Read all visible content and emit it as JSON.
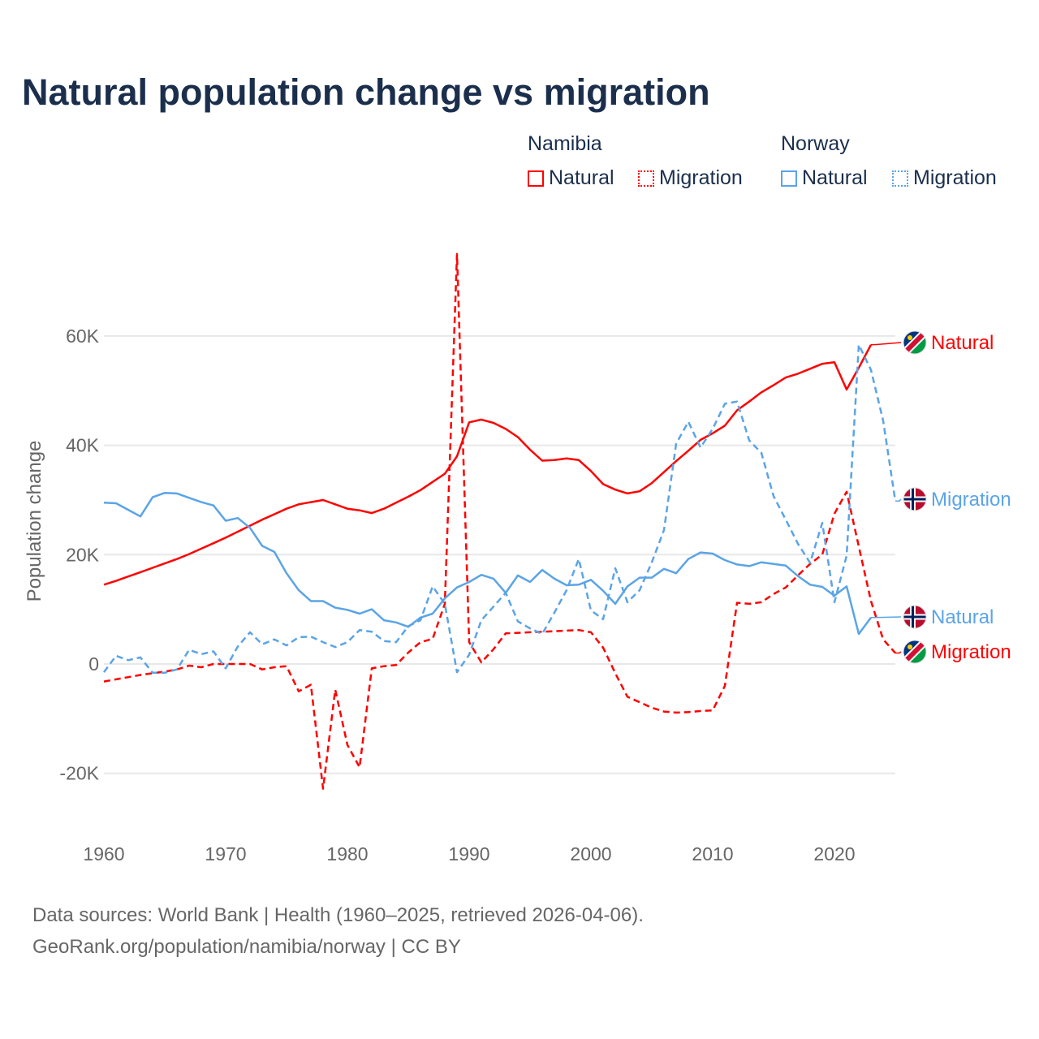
{
  "title": "Natural population change vs migration",
  "legend": {
    "groups": [
      {
        "name": "Namibia",
        "items": [
          {
            "label": "Natural",
            "style": "solid"
          },
          {
            "label": "Migration",
            "style": "dotted"
          }
        ],
        "color": "#ff0000"
      },
      {
        "name": "Norway",
        "items": [
          {
            "label": "Natural",
            "style": "solid"
          },
          {
            "label": "Migration",
            "style": "dotted"
          }
        ],
        "color": "#5ba4e6"
      }
    ]
  },
  "footer": {
    "line1": "Data sources: World Bank | Health (1960–2025, retrieved 2026-04-06).",
    "line2": "GeoRank.org/population/namibia/norway | CC BY"
  },
  "chart_data": {
    "type": "line",
    "title": "Natural population change vs migration",
    "xlabel": "",
    "ylabel": "Population change",
    "xlim": [
      1960,
      2025
    ],
    "ylim": [
      -30000,
      75000
    ],
    "xticks": [
      1960,
      1970,
      1980,
      1990,
      2000,
      2010,
      2020
    ],
    "xtick_labels": [
      "1960",
      "1970",
      "1980",
      "1990",
      "2000",
      "2010",
      "2020"
    ],
    "yticks": [
      -20000,
      0,
      20000,
      40000,
      60000
    ],
    "ytick_labels": [
      "-20K",
      "0",
      "20K",
      "40K",
      "60K"
    ],
    "grid": true,
    "series": [
      {
        "name": "Natural",
        "country": "Namibia",
        "color": "#ff0000",
        "dash": false,
        "end_label": "Natural",
        "flag": "namibia-flag",
        "start": 1960,
        "values": [
          14500,
          15200,
          16000,
          16800,
          17600,
          18400,
          19200,
          20100,
          21100,
          22100,
          23100,
          24200,
          25300,
          26400,
          27400,
          28400,
          29200,
          29600,
          30000,
          29200,
          28400,
          28100,
          27600,
          28400,
          29500,
          30600,
          31800,
          33300,
          34800,
          38000,
          44200,
          44700,
          44100,
          43000,
          41500,
          39200,
          37200,
          37300,
          37600,
          37300,
          35300,
          32900,
          31900,
          31200,
          31600,
          33100,
          35100,
          37100,
          39000,
          41000,
          42200,
          43600,
          46400,
          48000,
          49700,
          51000,
          52400,
          53100,
          54000,
          54900,
          55200,
          50200,
          54200,
          58400
        ]
      },
      {
        "name": "Migration",
        "country": "Namibia",
        "color": "#ff0000",
        "dash": true,
        "end_label": "Migration",
        "flag": "namibia-flag",
        "start": 1960,
        "values": [
          -3200,
          -2800,
          -2400,
          -2000,
          -1700,
          -1400,
          -1000,
          -300,
          -600,
          0,
          0,
          0,
          0,
          -1000,
          -600,
          -400,
          -5000,
          -3800,
          -22800,
          -4700,
          -14800,
          -18900,
          -800,
          -400,
          -200,
          2100,
          4000,
          4600,
          11000,
          75000,
          4000,
          300,
          2700,
          5600,
          5700,
          5800,
          5900,
          6000,
          6100,
          6200,
          5800,
          3000,
          -1700,
          -6000,
          -7000,
          -8000,
          -8700,
          -8900,
          -8800,
          -8600,
          -8500,
          -4000,
          11200,
          11000,
          11300,
          12800,
          14000,
          16200,
          18300,
          20000,
          27500,
          31500,
          21500,
          11500,
          4500,
          2000
        ]
      },
      {
        "name": "Natural",
        "country": "Norway",
        "color": "#5ba4e6",
        "dash": false,
        "end_label": "Natural",
        "flag": "norway-flag",
        "start": 1960,
        "values": [
          29500,
          29400,
          28200,
          27000,
          30500,
          31300,
          31200,
          30400,
          29600,
          29000,
          26200,
          26700,
          24900,
          21600,
          20500,
          16600,
          13500,
          11500,
          11500,
          10300,
          9900,
          9200,
          10000,
          8000,
          7600,
          6800,
          8500,
          9200,
          12000,
          14000,
          15000,
          16300,
          15600,
          13000,
          16200,
          15000,
          17200,
          15600,
          14400,
          14500,
          15400,
          13400,
          11000,
          14200,
          15800,
          15800,
          17400,
          16600,
          19200,
          20400,
          20200,
          19000,
          18200,
          17900,
          18600,
          18300,
          18000,
          16100,
          14500,
          14100,
          12500,
          14200,
          5500,
          8500
        ]
      },
      {
        "name": "Migration",
        "country": "Norway",
        "color": "#5ba4e6",
        "dash": true,
        "end_label": "Migration",
        "flag": "norway-flag",
        "start": 1960,
        "values": [
          -1500,
          1500,
          700,
          1200,
          -1600,
          -1600,
          -1000,
          2600,
          1800,
          2300,
          -800,
          3200,
          5800,
          3600,
          4500,
          3400,
          4900,
          5000,
          4000,
          3100,
          4000,
          6200,
          5900,
          4200,
          4000,
          6900,
          8000,
          14200,
          11000,
          -1500,
          1700,
          8000,
          10500,
          13000,
          7800,
          6500,
          5500,
          9400,
          13500,
          19200,
          9800,
          8200,
          17500,
          11300,
          13500,
          18600,
          24500,
          40300,
          44300,
          39600,
          43000,
          47600,
          48000,
          40900,
          38600,
          30700,
          26400,
          22000,
          18500,
          25800,
          11300,
          19800,
          58400,
          53800,
          44500,
          29800
        ]
      }
    ]
  }
}
